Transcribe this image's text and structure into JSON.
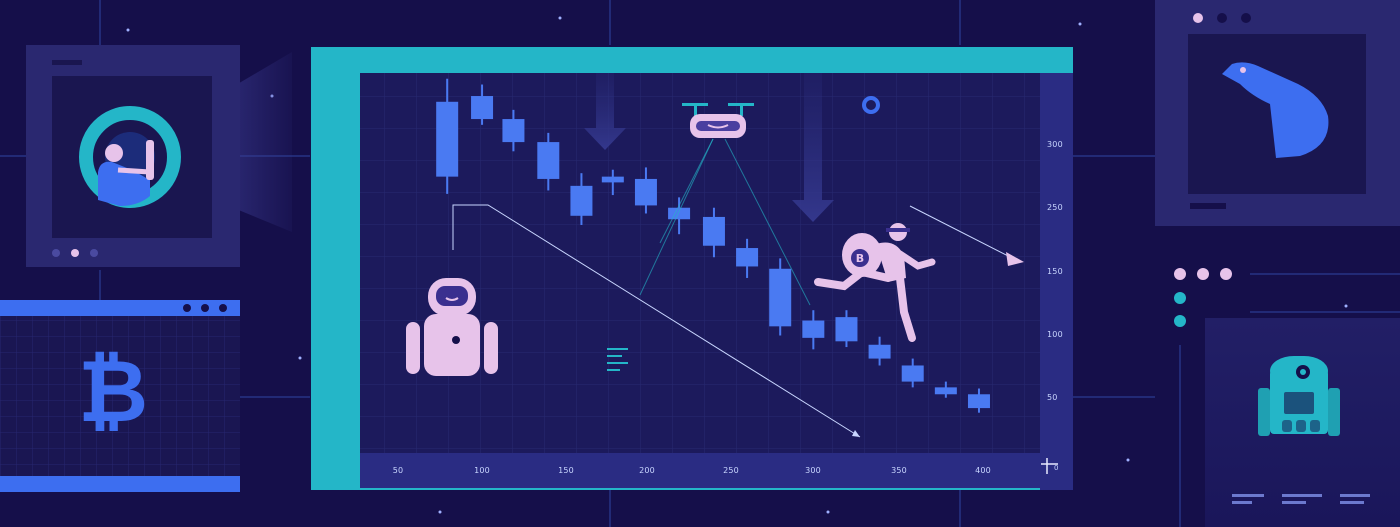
{
  "scene": "crypto-bear-market-illustration",
  "colors": {
    "background": "#150f4a",
    "panel": "#1e1a5c",
    "frame_teal": "#24b6c8",
    "candle_blue": "#4a7af2",
    "accent_pink": "#e7c3ea",
    "line_light": "#c9d6ff"
  },
  "icons": {
    "bitcoin_symbol": "₿",
    "coin_symbol": "B"
  },
  "chart_data": {
    "type": "candlestick",
    "title": "",
    "xlabel": "",
    "ylabel": "",
    "x_ticks": [
      "50",
      "100",
      "150",
      "200",
      "250",
      "300",
      "350",
      "400"
    ],
    "y_ticks": [
      "300",
      "250",
      "150",
      "100",
      "50"
    ],
    "origin_label": "0",
    "xlim": [
      30,
      420
    ],
    "ylim": [
      0,
      330
    ],
    "candles": [
      {
        "x": 80,
        "open": 240,
        "close": 305,
        "low": 225,
        "high": 325
      },
      {
        "x": 100,
        "open": 310,
        "close": 290,
        "low": 285,
        "high": 320
      },
      {
        "x": 118,
        "open": 290,
        "close": 270,
        "low": 262,
        "high": 298
      },
      {
        "x": 138,
        "open": 270,
        "close": 238,
        "low": 228,
        "high": 278
      },
      {
        "x": 157,
        "open": 232,
        "close": 206,
        "low": 198,
        "high": 243
      },
      {
        "x": 175,
        "open": 235,
        "close": 240,
        "low": 224,
        "high": 246
      },
      {
        "x": 194,
        "open": 238,
        "close": 215,
        "low": 208,
        "high": 248
      },
      {
        "x": 213,
        "open": 213,
        "close": 203,
        "low": 190,
        "high": 222
      },
      {
        "x": 233,
        "open": 205,
        "close": 180,
        "low": 170,
        "high": 213
      },
      {
        "x": 252,
        "open": 178,
        "close": 162,
        "low": 152,
        "high": 186
      },
      {
        "x": 271,
        "open": 160,
        "close": 110,
        "low": 102,
        "high": 169
      },
      {
        "x": 290,
        "open": 115,
        "close": 100,
        "low": 90,
        "high": 124
      },
      {
        "x": 309,
        "open": 118,
        "close": 97,
        "low": 92,
        "high": 124
      },
      {
        "x": 328,
        "open": 94,
        "close": 82,
        "low": 76,
        "high": 101
      },
      {
        "x": 347,
        "open": 76,
        "close": 62,
        "low": 57,
        "high": 82
      },
      {
        "x": 366,
        "open": 57,
        "close": 51,
        "low": 48,
        "high": 62
      },
      {
        "x": 385,
        "open": 51,
        "close": 39,
        "low": 35,
        "high": 56
      }
    ]
  }
}
